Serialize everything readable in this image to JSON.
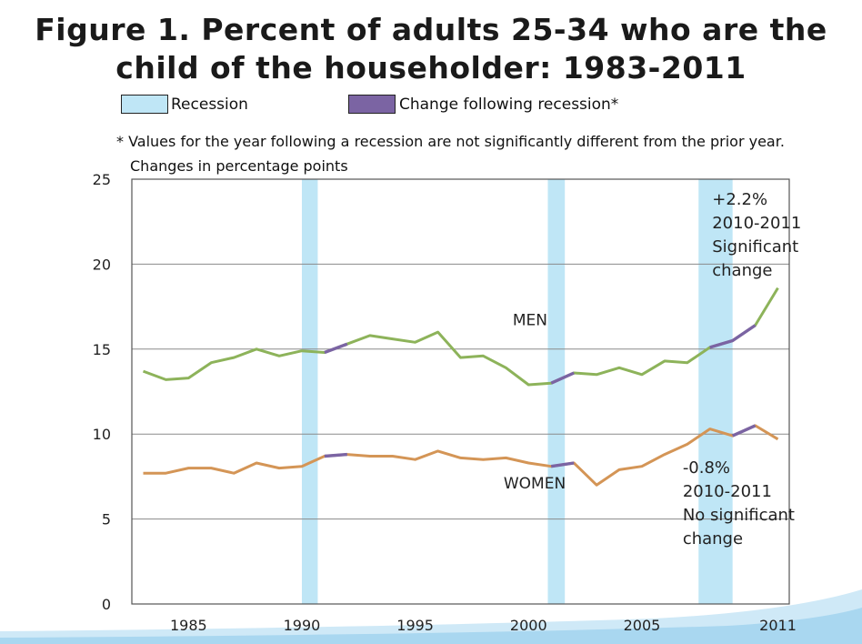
{
  "title_line1": "Figure 1. Percent of adults 25-34 who are the",
  "title_line2": "child of the householder: 1983-2011",
  "legend": {
    "recession_label": "Recession",
    "change_label": "Change following recession*",
    "recession_color": "#bfe6f6",
    "change_color": "#7b64a3"
  },
  "footnote": "* Values for the year following a recession are not significantly different from the prior year.",
  "subtitle": "Changes in percentage points",
  "chart_data": {
    "type": "line",
    "title": "Percent of adults 25-34 who are the child of the householder: 1983-2011",
    "xlabel": "",
    "ylabel": "Changes in percentage points",
    "xlim": [
      1982.5,
      2011.5
    ],
    "ylim": [
      0,
      25
    ],
    "grid": true,
    "y_ticks": [
      0,
      5,
      10,
      15,
      20,
      25
    ],
    "x_ticks": [
      1985,
      1990,
      1995,
      2000,
      2005,
      2011
    ],
    "x": [
      1983,
      1984,
      1985,
      1986,
      1987,
      1988,
      1989,
      1990,
      1991,
      1992,
      1993,
      1994,
      1995,
      1996,
      1997,
      1998,
      1999,
      2000,
      2001,
      2002,
      2003,
      2004,
      2005,
      2006,
      2007,
      2008,
      2009,
      2010,
      2011
    ],
    "series": [
      {
        "name": "MEN",
        "color": "#8db35a",
        "values": [
          13.7,
          13.2,
          13.3,
          14.2,
          14.5,
          15.0,
          14.6,
          14.9,
          14.8,
          15.3,
          15.8,
          15.6,
          15.4,
          16.0,
          14.5,
          14.6,
          13.9,
          12.9,
          13.0,
          13.6,
          13.5,
          13.9,
          13.5,
          14.3,
          14.2,
          15.1,
          15.5,
          16.4,
          18.6
        ]
      },
      {
        "name": "WOMEN",
        "color": "#d49556",
        "values": [
          7.7,
          7.7,
          8.0,
          8.0,
          7.7,
          8.3,
          8.0,
          8.1,
          8.7,
          8.8,
          8.7,
          8.7,
          8.5,
          9.0,
          8.6,
          8.5,
          8.6,
          8.3,
          8.1,
          8.3,
          7.0,
          7.9,
          8.1,
          8.8,
          9.4,
          10.3,
          9.9,
          10.5,
          9.7
        ]
      }
    ],
    "recessions": [
      {
        "start": 1990.0,
        "end": 1990.7
      },
      {
        "start": 2000.85,
        "end": 2001.6
      },
      {
        "start": 2007.5,
        "end": 2009.0
      }
    ],
    "post_recession_segments": [
      {
        "series": "MEN",
        "from": 1991,
        "to": 1992
      },
      {
        "series": "WOMEN",
        "from": 1991,
        "to": 1992
      },
      {
        "series": "MEN",
        "from": 2001,
        "to": 2002
      },
      {
        "series": "WOMEN",
        "from": 2001,
        "to": 2002
      },
      {
        "series": "MEN",
        "from": 2008,
        "to": 2010
      },
      {
        "series": "WOMEN",
        "from": 2009,
        "to": 2010
      }
    ],
    "series_labels": [
      {
        "text": "MEN",
        "x": 1999.3,
        "y": 16.4
      },
      {
        "text": "WOMEN",
        "x": 1998.9,
        "y": 6.8
      }
    ],
    "annotations": [
      {
        "lines": [
          "+2.2%",
          "2010-2011",
          "Significant",
          "change"
        ],
        "x": 2008.1,
        "y": 23.5
      },
      {
        "lines": [
          "-0.8%",
          "2010-2011",
          "No significant",
          "change"
        ],
        "x": 2006.8,
        "y": 7.7
      }
    ]
  }
}
